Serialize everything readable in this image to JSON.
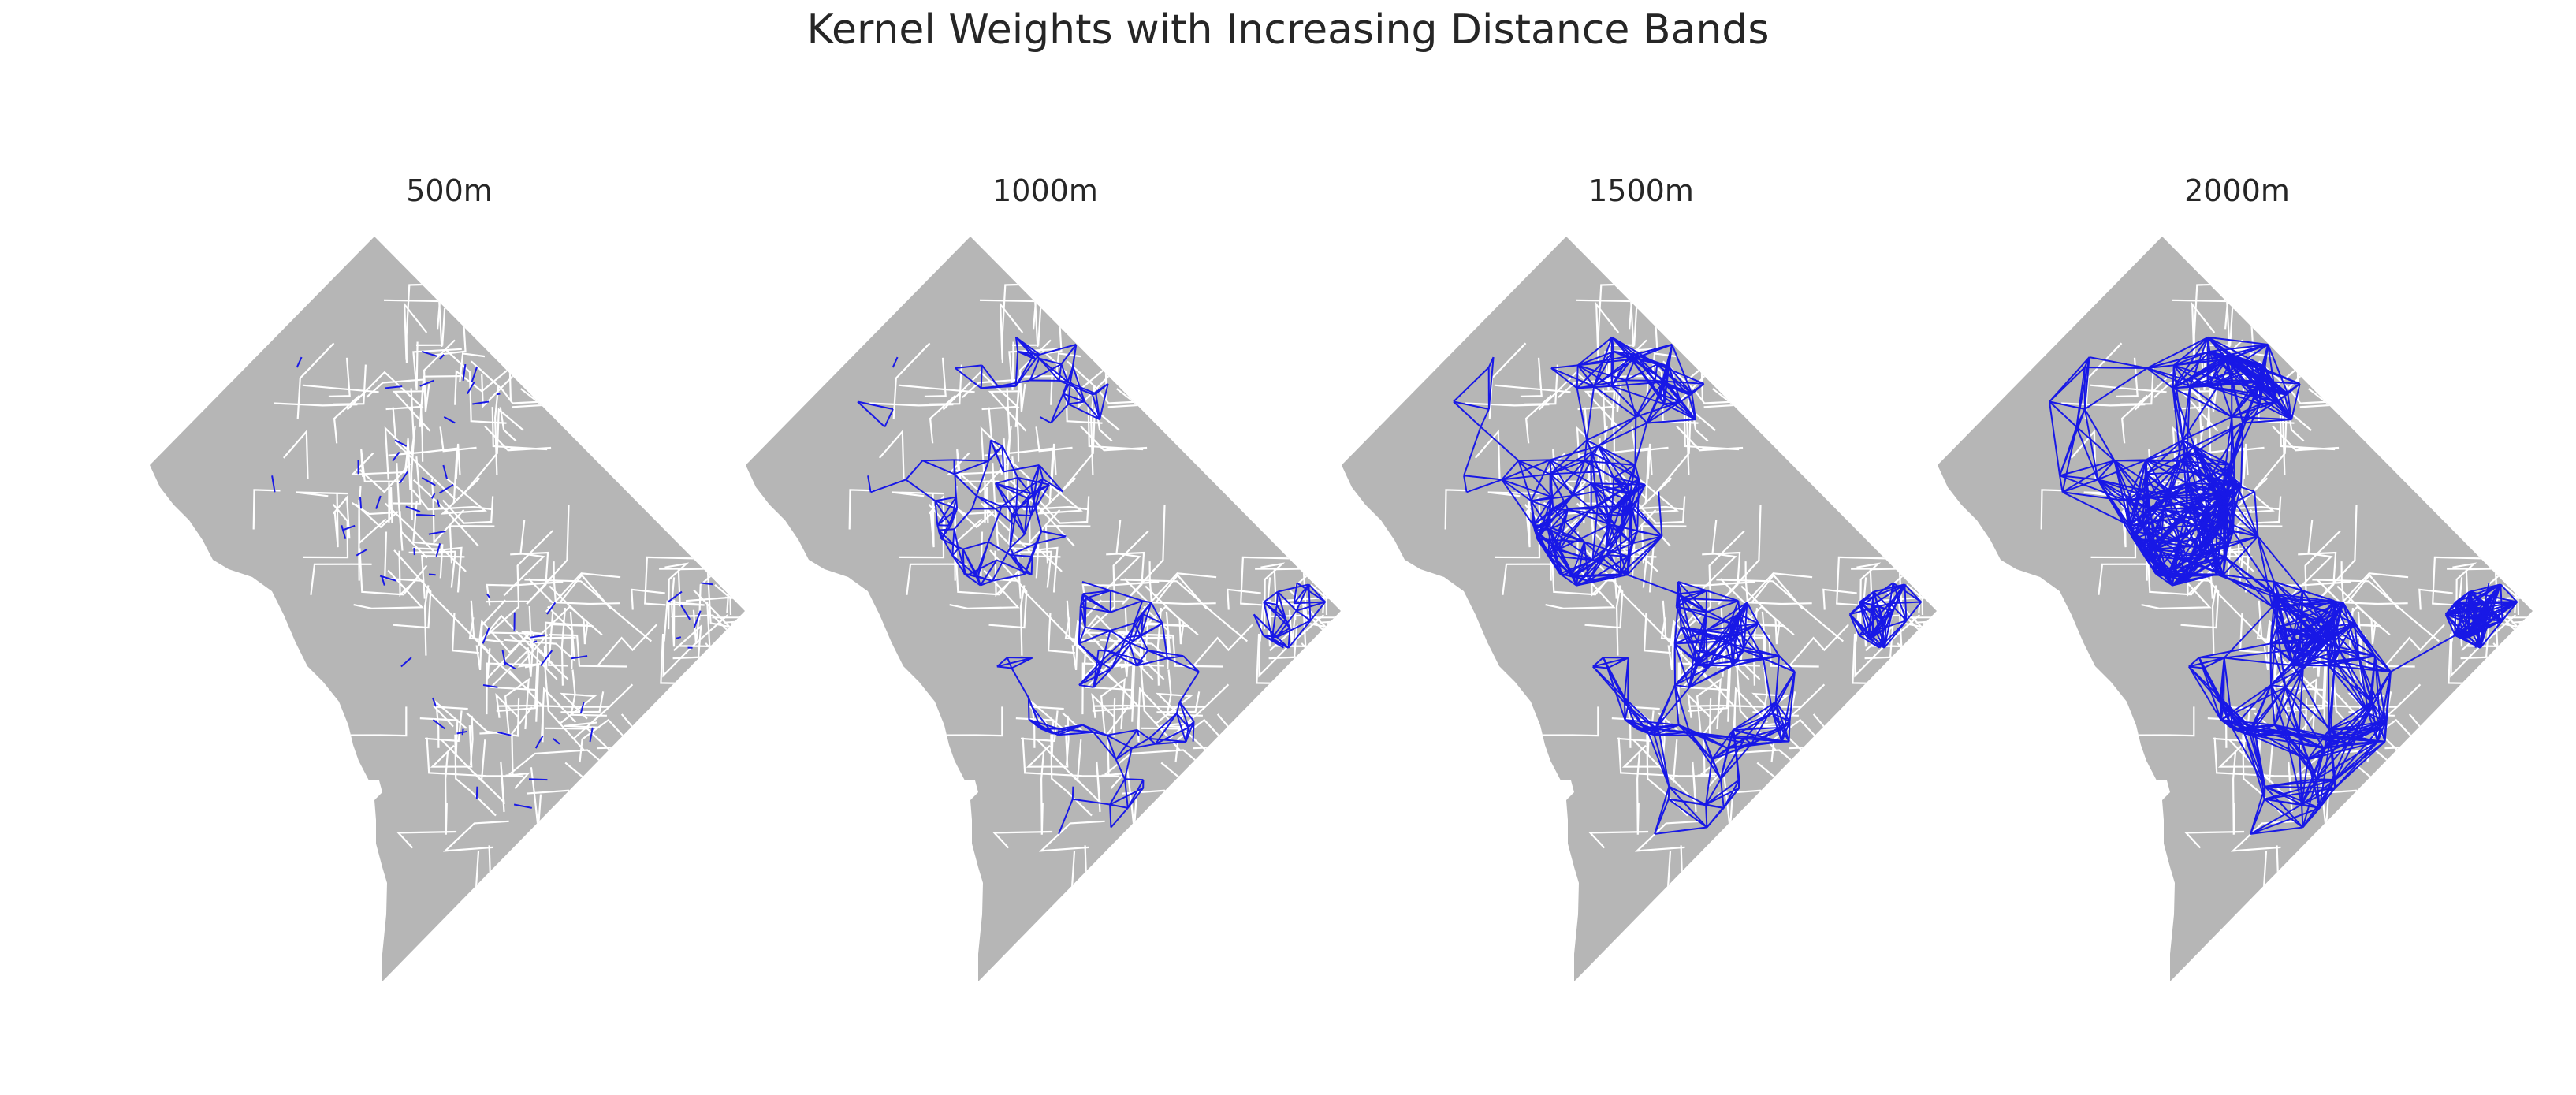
{
  "figure": {
    "title": "Kernel Weights with Increasing Distance Bands",
    "region_color": "#b6b6b6",
    "boundary_color": "#ffffff",
    "link_color": "#1818e6"
  },
  "panels": [
    {
      "title": "500m",
      "band_m": 500,
      "link_density": "sparse"
    },
    {
      "title": "1000m",
      "band_m": 1000,
      "link_density": "low"
    },
    {
      "title": "1500m",
      "band_m": 1500,
      "link_density": "medium"
    },
    {
      "title": "2000m",
      "band_m": 2000,
      "link_density": "high"
    }
  ]
}
